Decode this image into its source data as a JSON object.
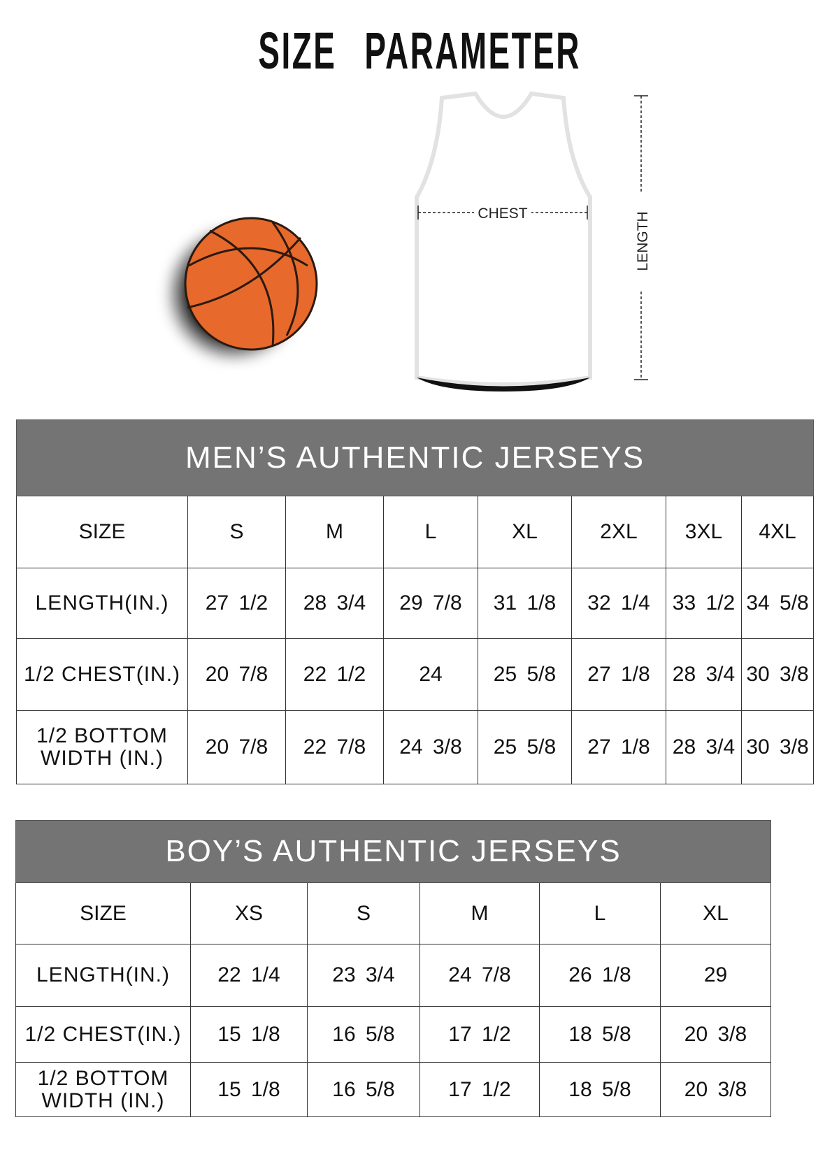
{
  "title": "SIZE PARAMETER",
  "diagram": {
    "chest_label": "CHEST",
    "length_label": "LENGTH",
    "ball_color": "#e8692c"
  },
  "men": {
    "heading": "MEN’S AUTHENTIC JERSEYS",
    "header_color": "#747474",
    "columns": [
      "SIZE",
      "S",
      "M",
      "L",
      "XL",
      "2XL",
      "3XL",
      "4XL"
    ],
    "rows": [
      {
        "label": "LENGTH(IN.)",
        "values": [
          "27 1/2",
          "28 3/4",
          "29 7/8",
          "31 1/8",
          "32 1/4",
          "33 1/2",
          "34 5/8"
        ]
      },
      {
        "label": "1/2 CHEST(IN.)",
        "values": [
          "20 7/8",
          "22 1/2",
          "24",
          "25 5/8",
          "27 1/8",
          "28 3/4",
          "30 3/8"
        ]
      },
      {
        "label": "1/2 BOTTOM WIDTH (IN.)",
        "values": [
          "20 7/8",
          "22 7/8",
          "24 3/8",
          "25 5/8",
          "27 1/8",
          "28 3/4",
          "30 3/8"
        ]
      }
    ]
  },
  "boys": {
    "heading": "BOY’S AUTHENTIC JERSEYS",
    "columns": [
      "SIZE",
      "XS",
      "S",
      "M",
      "L",
      "XL"
    ],
    "rows": [
      {
        "label": "LENGTH(IN.)",
        "values": [
          "22 1/4",
          "23 3/4",
          "24 7/8",
          "26 1/8",
          "29"
        ]
      },
      {
        "label": "1/2 CHEST(IN.)",
        "values": [
          "15 1/8",
          "16 5/8",
          "17 1/2",
          "18 5/8",
          "20 3/8"
        ]
      },
      {
        "label": "1/2 BOTTOM WIDTH (IN.)",
        "values": [
          "15 1/8",
          "16 5/8",
          "17 1/2",
          "18 5/8",
          "20 3/8"
        ]
      }
    ]
  }
}
